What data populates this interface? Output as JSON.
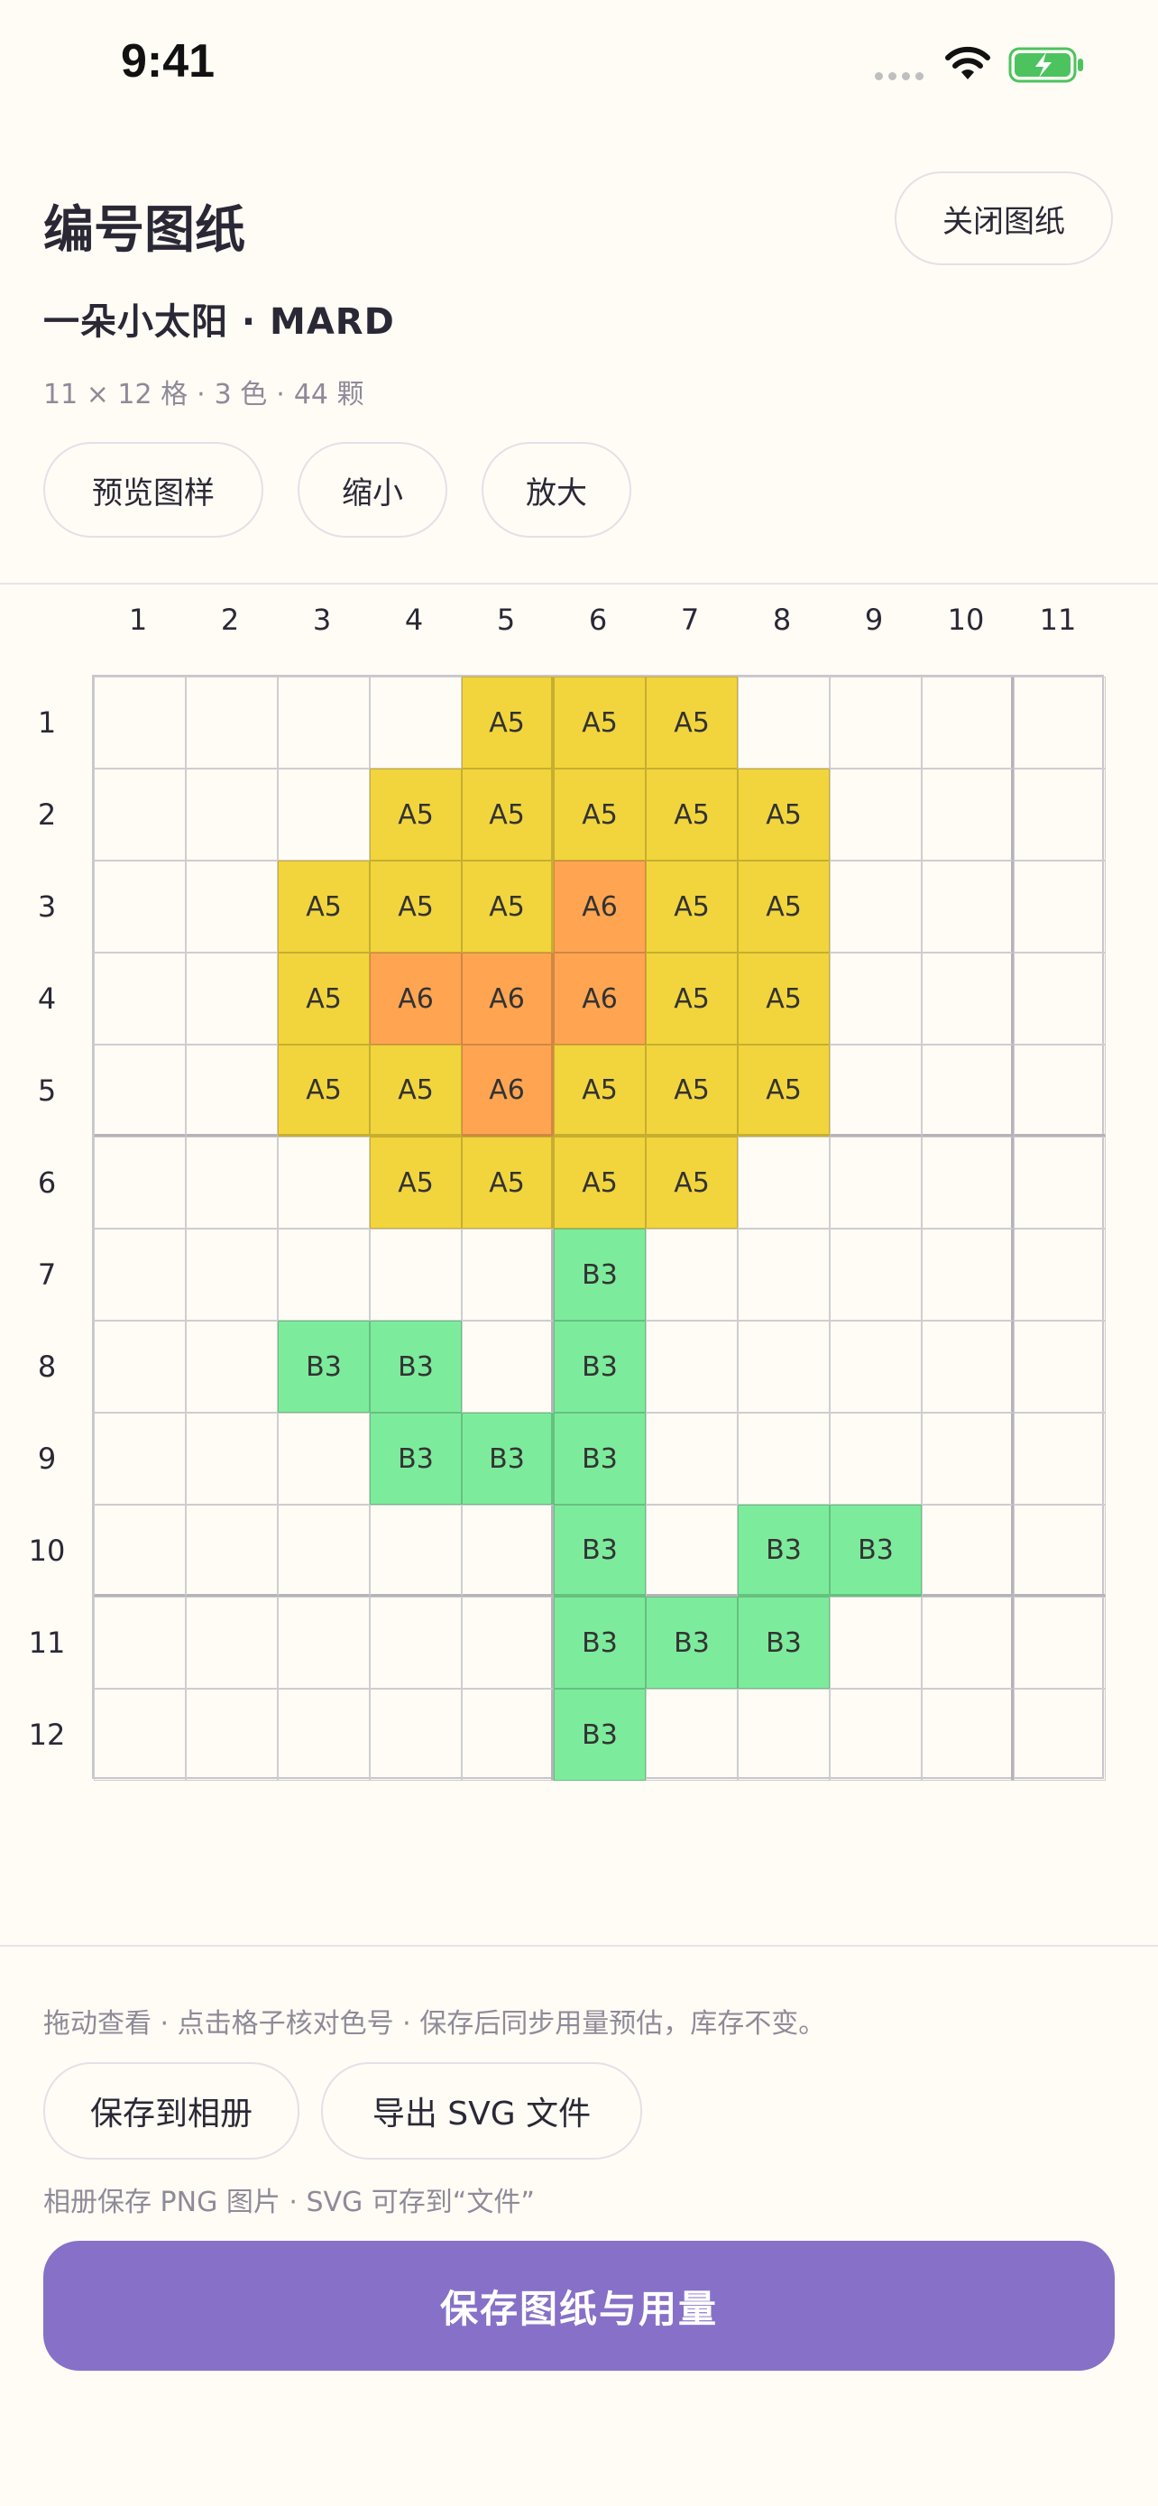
{
  "status_bar": {
    "time": "9:41"
  },
  "header": {
    "title": "编号图纸",
    "close_label": "关闭图纸",
    "subtitle": "一朵小太阳 · MARD",
    "meta": {
      "size": "11 × 12 格",
      "colors": "3 色",
      "beads": "44 颗"
    },
    "buttons": {
      "preview": "预览图样",
      "zoom_out": "缩小",
      "zoom_in": "放大"
    }
  },
  "grid": {
    "columns": [
      "1",
      "2",
      "3",
      "4",
      "5",
      "6",
      "7",
      "8",
      "9",
      "10",
      "11"
    ],
    "rows": [
      "1",
      "2",
      "3",
      "4",
      "5",
      "6",
      "7",
      "8",
      "9",
      "10",
      "11",
      "12"
    ],
    "palette": {
      "A5": "#f2d53c",
      "A6": "#ffa552",
      "B3": "#7deb9c"
    },
    "cells": [
      [
        "",
        "",
        "",
        "",
        "A5",
        "A5",
        "A5",
        "",
        "",
        "",
        ""
      ],
      [
        "",
        "",
        "",
        "A5",
        "A5",
        "A5",
        "A5",
        "A5",
        "",
        "",
        ""
      ],
      [
        "",
        "",
        "A5",
        "A5",
        "A5",
        "A6",
        "A5",
        "A5",
        "",
        "",
        ""
      ],
      [
        "",
        "",
        "A5",
        "A6",
        "A6",
        "A6",
        "A5",
        "A5",
        "",
        "",
        ""
      ],
      [
        "",
        "",
        "A5",
        "A5",
        "A6",
        "A5",
        "A5",
        "A5",
        "",
        "",
        ""
      ],
      [
        "",
        "",
        "",
        "A5",
        "A5",
        "A5",
        "A5",
        "",
        "",
        "",
        ""
      ],
      [
        "",
        "",
        "",
        "",
        "",
        "B3",
        "",
        "",
        "",
        "",
        ""
      ],
      [
        "",
        "",
        "B3",
        "B3",
        "",
        "B3",
        "",
        "",
        "",
        "",
        ""
      ],
      [
        "",
        "",
        "",
        "B3",
        "B3",
        "B3",
        "",
        "",
        "",
        "",
        ""
      ],
      [
        "",
        "",
        "",
        "",
        "",
        "B3",
        "",
        "B3",
        "B3",
        "",
        ""
      ],
      [
        "",
        "",
        "",
        "",
        "",
        "B3",
        "B3",
        "B3",
        "",
        "",
        ""
      ],
      [
        "",
        "",
        "",
        "",
        "",
        "B3",
        "",
        "",
        "",
        "",
        ""
      ]
    ]
  },
  "footer": {
    "hint": "拖动查看 · 点击格子核对色号 · 保存后同步用量预估，库存不变。",
    "save_album_label": "保存到相册",
    "export_svg_label": "导出 SVG 文件",
    "note": "相册保存 PNG 图片 · SVG 可存到“文件”",
    "primary_label": "保存图纸与用量"
  },
  "colors": {
    "accent": "#8770c7",
    "background": "#fffcf5"
  }
}
